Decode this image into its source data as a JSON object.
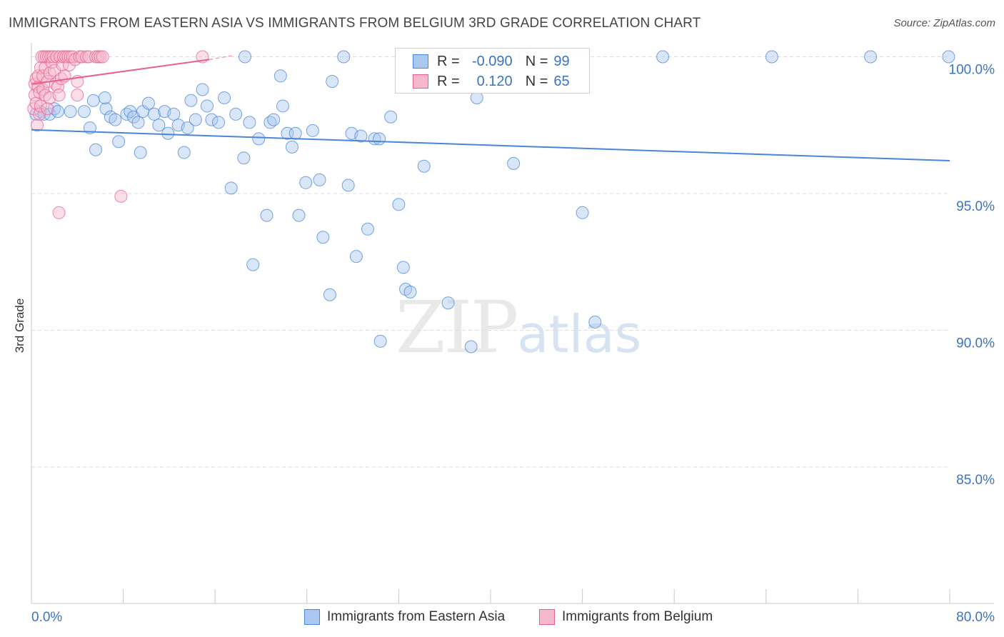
{
  "title": "IMMIGRANTS FROM EASTERN ASIA VS IMMIGRANTS FROM BELGIUM 3RD GRADE CORRELATION CHART",
  "source": "Source: ZipAtlas.com",
  "watermark": {
    "zip": "ZIP",
    "atlas": "atlas"
  },
  "colors": {
    "blue": "#4a86d8",
    "blue_fill": "#a9c7ef",
    "pink": "#e8608e",
    "pink_fill": "#f6b8cc",
    "value_text": "#3a74c4"
  },
  "legend_box": {
    "rows": [
      {
        "swatch": "blue",
        "r_label": "R =",
        "r_value": "-0.090",
        "n_label": "N =",
        "n_value": "99"
      },
      {
        "swatch": "pink",
        "r_label": "R =",
        "r_value": "0.120",
        "n_label": "N =",
        "n_value": "65"
      }
    ]
  },
  "chart_data": {
    "type": "scatter",
    "xlabel": "",
    "ylabel": "3rd Grade",
    "xlim": [
      0,
      80
    ],
    "ylim": [
      80.6,
      100.9
    ],
    "x_tick_labels": [
      "0.0%",
      "80.0%"
    ],
    "y_tick_labels": [
      "100.0%",
      "95.0%",
      "90.0%",
      "85.0%"
    ],
    "y_ticks": [
      100,
      95,
      90,
      85
    ],
    "grid": "horizontal dashed",
    "legend_position": "bottom-center",
    "series": [
      {
        "name": "Immigrants from Eastern Asia",
        "color": "blue",
        "trend": {
          "x": [
            0,
            80
          ],
          "y": [
            97.33,
            96.2
          ]
        },
        "points": [
          [
            0.4,
            97.9
          ],
          [
            0.8,
            98.0
          ],
          [
            1.1,
            97.9
          ],
          [
            1.6,
            97.9
          ],
          [
            2.0,
            98.1
          ],
          [
            2.3,
            98.0
          ],
          [
            3.4,
            98.0
          ],
          [
            4.6,
            98.0
          ],
          [
            5.1,
            97.4
          ],
          [
            5.4,
            98.4
          ],
          [
            5.6,
            96.6
          ],
          [
            6.5,
            98.1
          ],
          [
            6.4,
            98.5
          ],
          [
            6.9,
            97.8
          ],
          [
            7.3,
            97.7
          ],
          [
            7.6,
            96.9
          ],
          [
            8.3,
            97.9
          ],
          [
            8.6,
            98.0
          ],
          [
            8.9,
            97.8
          ],
          [
            9.3,
            97.6
          ],
          [
            9.5,
            96.5
          ],
          [
            9.7,
            98.0
          ],
          [
            10.2,
            98.3
          ],
          [
            10.7,
            97.9
          ],
          [
            11.1,
            97.5
          ],
          [
            11.6,
            98.0
          ],
          [
            11.9,
            97.2
          ],
          [
            12.4,
            97.9
          ],
          [
            12.8,
            97.5
          ],
          [
            13.3,
            96.5
          ],
          [
            13.6,
            97.4
          ],
          [
            13.9,
            98.4
          ],
          [
            14.3,
            97.7
          ],
          [
            14.9,
            98.8
          ],
          [
            15.3,
            98.2
          ],
          [
            15.7,
            97.7
          ],
          [
            16.3,
            97.6
          ],
          [
            16.8,
            98.5
          ],
          [
            17.4,
            95.2
          ],
          [
            17.8,
            97.9
          ],
          [
            18.5,
            96.3
          ],
          [
            19.0,
            97.6
          ],
          [
            18.6,
            100.0
          ],
          [
            19.3,
            92.4
          ],
          [
            19.8,
            97.0
          ],
          [
            20.5,
            94.2
          ],
          [
            20.8,
            97.6
          ],
          [
            21.1,
            97.7
          ],
          [
            21.7,
            99.3
          ],
          [
            21.9,
            98.2
          ],
          [
            22.3,
            97.2
          ],
          [
            22.7,
            96.7
          ],
          [
            23.0,
            97.2
          ],
          [
            23.3,
            94.2
          ],
          [
            23.9,
            95.4
          ],
          [
            24.5,
            97.3
          ],
          [
            25.1,
            95.5
          ],
          [
            25.4,
            93.4
          ],
          [
            26.0,
            91.3
          ],
          [
            26.2,
            99.1
          ],
          [
            27.2,
            100.0
          ],
          [
            27.6,
            95.3
          ],
          [
            27.9,
            97.2
          ],
          [
            28.3,
            92.7
          ],
          [
            28.7,
            97.1
          ],
          [
            29.3,
            93.7
          ],
          [
            29.9,
            97.0
          ],
          [
            30.3,
            97.0
          ],
          [
            30.4,
            89.6
          ],
          [
            31.3,
            97.8
          ],
          [
            32.0,
            94.6
          ],
          [
            32.4,
            92.3
          ],
          [
            32.6,
            91.5
          ],
          [
            33.0,
            91.4
          ],
          [
            34.2,
            96.0
          ],
          [
            34.5,
            100.0
          ],
          [
            36.3,
            91.0
          ],
          [
            37.0,
            100.0
          ],
          [
            38.3,
            89.4
          ],
          [
            38.8,
            98.5
          ],
          [
            40.5,
            100.0
          ],
          [
            42.0,
            96.1
          ],
          [
            43.0,
            100.0
          ],
          [
            48.0,
            94.3
          ],
          [
            49.1,
            90.3
          ],
          [
            55.0,
            100.0
          ],
          [
            64.5,
            100.0
          ],
          [
            73.1,
            100.0
          ],
          [
            79.9,
            100.0
          ]
        ]
      },
      {
        "name": "Immigrants from Belgium",
        "color": "pink",
        "trend": {
          "x": [
            0,
            15.5
          ],
          "y": [
            99.0,
            99.9
          ]
        },
        "trend_dashed": {
          "x": [
            15.5,
            17.5
          ],
          "y": [
            99.9,
            100.04
          ]
        },
        "points": [
          [
            0.2,
            98.1
          ],
          [
            0.3,
            98.6
          ],
          [
            0.3,
            99.0
          ],
          [
            0.4,
            99.2
          ],
          [
            0.4,
            98.3
          ],
          [
            0.5,
            97.5
          ],
          [
            0.6,
            98.9
          ],
          [
            0.6,
            99.3
          ],
          [
            0.7,
            98.7
          ],
          [
            0.7,
            97.9
          ],
          [
            0.8,
            99.6
          ],
          [
            0.8,
            98.2
          ],
          [
            0.9,
            100.0
          ],
          [
            1.0,
            98.8
          ],
          [
            1.0,
            99.3
          ],
          [
            1.1,
            100.0
          ],
          [
            1.2,
            98.6
          ],
          [
            1.2,
            99.6
          ],
          [
            1.3,
            100.0
          ],
          [
            1.4,
            99.1
          ],
          [
            1.4,
            98.1
          ],
          [
            1.5,
            100.0
          ],
          [
            1.6,
            99.4
          ],
          [
            1.6,
            98.5
          ],
          [
            1.7,
            100.0
          ],
          [
            1.8,
            99.8
          ],
          [
            1.9,
            100.0
          ],
          [
            2.0,
            99.5
          ],
          [
            2.1,
            99.0
          ],
          [
            2.2,
            100.0
          ],
          [
            2.3,
            98.9
          ],
          [
            2.4,
            98.6
          ],
          [
            2.5,
            100.0
          ],
          [
            2.6,
            99.2
          ],
          [
            2.7,
            99.7
          ],
          [
            2.8,
            100.0
          ],
          [
            2.9,
            99.3
          ],
          [
            3.0,
            100.0
          ],
          [
            3.2,
            100.0
          ],
          [
            3.3,
            99.7
          ],
          [
            3.4,
            100.0
          ],
          [
            3.6,
            100.0
          ],
          [
            3.8,
            99.9
          ],
          [
            4.0,
            98.6
          ],
          [
            4.0,
            99.1
          ],
          [
            4.2,
            100.0
          ],
          [
            4.4,
            100.0
          ],
          [
            4.8,
            100.0
          ],
          [
            5.0,
            100.0
          ],
          [
            5.6,
            100.0
          ],
          [
            5.8,
            100.0
          ],
          [
            6.0,
            100.0
          ],
          [
            6.2,
            100.0
          ],
          [
            2.4,
            94.3
          ],
          [
            7.8,
            94.9
          ],
          [
            14.9,
            100.0
          ]
        ]
      }
    ]
  },
  "bottom_legend": [
    {
      "swatch": "blue",
      "label": "Immigrants from Eastern Asia"
    },
    {
      "swatch": "pink",
      "label": "Immigrants from Belgium"
    }
  ]
}
